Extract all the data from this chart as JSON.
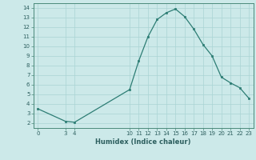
{
  "x": [
    0,
    3,
    4,
    10,
    11,
    12,
    13,
    14,
    15,
    16,
    17,
    18,
    19,
    20,
    21,
    22,
    23
  ],
  "y": [
    3.5,
    2.2,
    2.1,
    5.5,
    8.5,
    11.0,
    12.8,
    13.5,
    13.9,
    13.1,
    11.8,
    10.2,
    9.0,
    6.8,
    6.2,
    5.7,
    4.6
  ],
  "title": "",
  "xlabel": "Humidex (Indice chaleur)",
  "xlim": [
    -0.5,
    23.5
  ],
  "ylim": [
    1.5,
    14.5
  ],
  "xticks": [
    0,
    3,
    4,
    10,
    11,
    12,
    13,
    14,
    15,
    16,
    17,
    18,
    19,
    20,
    21,
    22,
    23
  ],
  "yticks": [
    2,
    3,
    4,
    5,
    6,
    7,
    8,
    9,
    10,
    11,
    12,
    13,
    14
  ],
  "line_color": "#2d7d74",
  "marker_color": "#2d7d74",
  "bg_color": "#cce9e9",
  "grid_color": "#aad4d4",
  "tick_label_color": "#2d5f5f",
  "xlabel_color": "#2d5f5f",
  "spine_color": "#4a8a7a"
}
